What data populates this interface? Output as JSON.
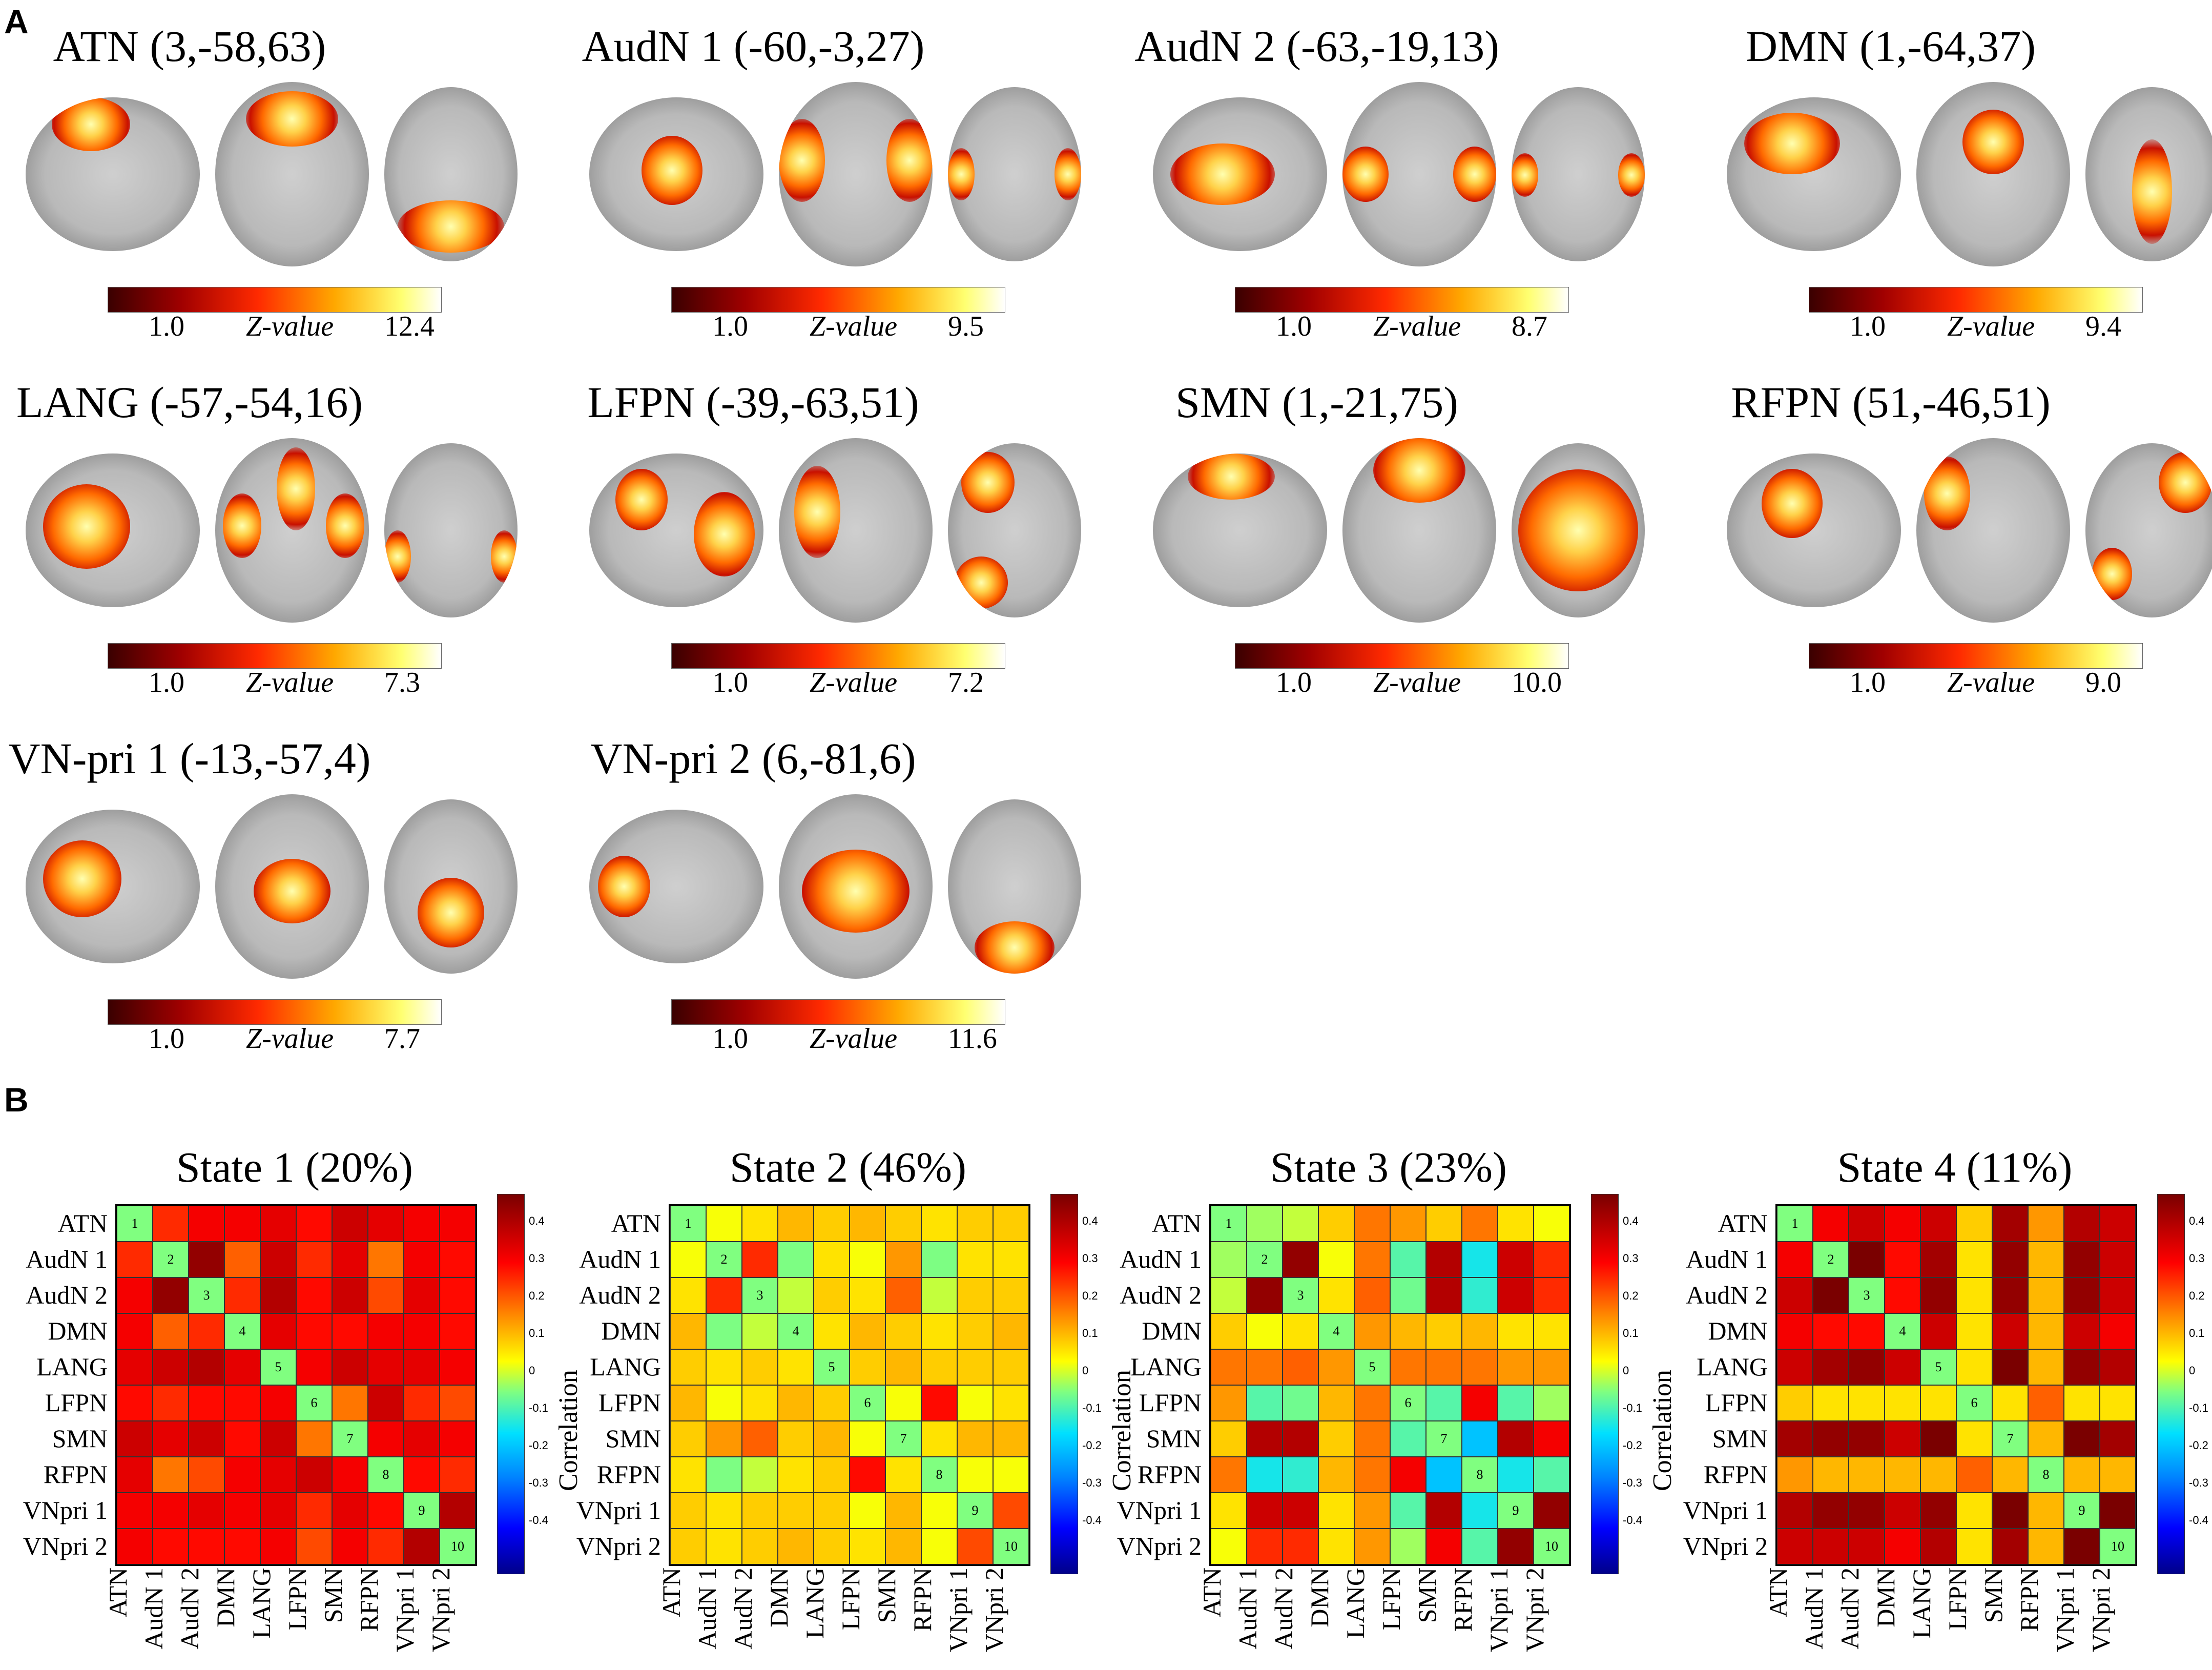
{
  "panelA": {
    "letter": "A"
  },
  "panelB": {
    "letter": "B"
  },
  "networks": [
    {
      "title": "ATN (3,-58,63)",
      "cb_min": "1.0",
      "cb_label": "Z-value",
      "cb_max": "12.4"
    },
    {
      "title": "AudN 1 (-60,-3,27)",
      "cb_min": "1.0",
      "cb_label": "Z-value",
      "cb_max": "9.5"
    },
    {
      "title": "AudN 2 (-63,-19,13)",
      "cb_min": "1.0",
      "cb_label": "Z-value",
      "cb_max": "8.7"
    },
    {
      "title": "DMN (1,-64,37)",
      "cb_min": "1.0",
      "cb_label": "Z-value",
      "cb_max": "9.4"
    },
    {
      "title": "LANG (-57,-54,16)",
      "cb_min": "1.0",
      "cb_label": "Z-value",
      "cb_max": "7.3"
    },
    {
      "title": "LFPN (-39,-63,51)",
      "cb_min": "1.0",
      "cb_label": "Z-value",
      "cb_max": "7.2"
    },
    {
      "title": "SMN (1,-21,75)",
      "cb_min": "1.0",
      "cb_label": "Z-value",
      "cb_max": "10.0"
    },
    {
      "title": "RFPN (51,-46,51)",
      "cb_min": "1.0",
      "cb_label": "Z-value",
      "cb_max": "9.0"
    },
    {
      "title": "VN-pri 1 (-13,-57,4)",
      "cb_min": "1.0",
      "cb_label": "Z-value",
      "cb_max": "7.7"
    },
    {
      "title": "VN-pri 2 (6,-81,6)",
      "cb_min": "1.0",
      "cb_label": "Z-value",
      "cb_max": "11.6"
    }
  ],
  "chart_data": {
    "type": "heatmap",
    "row_labels": [
      "ATN",
      "AudN 1",
      "AudN 2",
      "DMN",
      "LANG",
      "LFPN",
      "SMN",
      "RFPN",
      "VNpri 1",
      "VNpri 2"
    ],
    "col_labels": [
      "ATN",
      "AudN 1",
      "AudN 2",
      "DMN",
      "LANG",
      "LFPN",
      "SMN",
      "RFPN",
      "VNpri 1",
      "VNpri 2"
    ],
    "diag_labels": [
      "1",
      "2",
      "3",
      "4",
      "5",
      "6",
      "7",
      "8",
      "9",
      "10"
    ],
    "colorbar_ticks": [
      "0.4",
      "0.3",
      "0.2",
      "0.1",
      "0",
      "-0.1",
      "-0.2",
      "-0.3",
      "-0.4"
    ],
    "colorbar_label": "Correlation",
    "range": [
      -0.45,
      0.45
    ],
    "states": [
      {
        "title": "State 1 (20%)",
        "matrix": [
          [
            0,
            0.25,
            0.3,
            0.3,
            0.32,
            0.28,
            0.35,
            0.32,
            0.3,
            0.3
          ],
          [
            0.25,
            0,
            0.42,
            0.2,
            0.35,
            0.25,
            0.32,
            0.18,
            0.3,
            0.28
          ],
          [
            0.3,
            0.42,
            0,
            0.25,
            0.38,
            0.28,
            0.35,
            0.22,
            0.32,
            0.28
          ],
          [
            0.3,
            0.2,
            0.25,
            0,
            0.32,
            0.28,
            0.28,
            0.3,
            0.3,
            0.28
          ],
          [
            0.32,
            0.35,
            0.38,
            0.32,
            0,
            0.3,
            0.35,
            0.32,
            0.32,
            0.3
          ],
          [
            0.28,
            0.25,
            0.28,
            0.28,
            0.3,
            0,
            0.18,
            0.35,
            0.25,
            0.22
          ],
          [
            0.35,
            0.32,
            0.35,
            0.28,
            0.35,
            0.18,
            0,
            0.3,
            0.32,
            0.3
          ],
          [
            0.32,
            0.18,
            0.22,
            0.3,
            0.32,
            0.35,
            0.3,
            0,
            0.28,
            0.25
          ],
          [
            0.3,
            0.3,
            0.32,
            0.3,
            0.32,
            0.25,
            0.32,
            0.28,
            0,
            0.38
          ],
          [
            0.3,
            0.28,
            0.28,
            0.28,
            0.3,
            0.22,
            0.3,
            0.25,
            0.38,
            0
          ]
        ]
      },
      {
        "title": "State 2 (46%)",
        "matrix": [
          [
            0,
            0.05,
            0.08,
            0.12,
            0.1,
            0.12,
            0.1,
            0.08,
            0.1,
            0.1
          ],
          [
            0.05,
            0,
            0.25,
            -0.02,
            0.08,
            0.05,
            0.15,
            -0.02,
            0.08,
            0.08
          ],
          [
            0.08,
            0.25,
            0,
            0.02,
            0.1,
            0.08,
            0.2,
            0.02,
            0.1,
            0.1
          ],
          [
            0.12,
            -0.02,
            0.02,
            0,
            0.08,
            0.12,
            0.1,
            0.08,
            0.1,
            0.12
          ],
          [
            0.1,
            0.08,
            0.1,
            0.08,
            0,
            0.1,
            0.12,
            0.1,
            0.1,
            0.1
          ],
          [
            0.12,
            0.05,
            0.08,
            0.12,
            0.1,
            0,
            0.05,
            0.28,
            0.05,
            0.08
          ],
          [
            0.1,
            0.15,
            0.2,
            0.1,
            0.12,
            0.05,
            0,
            0.08,
            0.12,
            0.12
          ],
          [
            0.08,
            -0.02,
            0.02,
            0.08,
            0.1,
            0.28,
            0.08,
            0,
            0.05,
            0.05
          ],
          [
            0.1,
            0.08,
            0.1,
            0.1,
            0.1,
            0.05,
            0.12,
            0.05,
            0,
            0.22
          ],
          [
            0.1,
            0.08,
            0.1,
            0.12,
            0.1,
            0.08,
            0.12,
            0.05,
            0.22,
            0
          ]
        ]
      },
      {
        "title": "State 3 (23%)",
        "matrix": [
          [
            0,
            0.0,
            0.02,
            0.1,
            0.18,
            0.15,
            0.1,
            0.18,
            0.08,
            0.05
          ],
          [
            0.0,
            0,
            0.42,
            0.05,
            0.18,
            -0.05,
            0.38,
            -0.1,
            0.35,
            0.25
          ],
          [
            0.02,
            0.42,
            0,
            0.08,
            0.2,
            -0.03,
            0.38,
            -0.08,
            0.35,
            0.25
          ],
          [
            0.1,
            0.05,
            0.08,
            0,
            0.15,
            0.12,
            0.1,
            0.12,
            0.08,
            0.08
          ],
          [
            0.18,
            0.18,
            0.2,
            0.15,
            0,
            0.18,
            0.18,
            0.18,
            0.15,
            0.15
          ],
          [
            0.15,
            -0.05,
            -0.03,
            0.12,
            0.18,
            0,
            -0.05,
            0.3,
            -0.05,
            0.0
          ],
          [
            0.1,
            0.38,
            0.38,
            0.1,
            0.18,
            -0.05,
            0,
            -0.15,
            0.38,
            0.3
          ],
          [
            0.18,
            -0.1,
            -0.08,
            0.12,
            0.18,
            0.3,
            -0.15,
            0,
            -0.1,
            -0.05
          ],
          [
            0.08,
            0.35,
            0.35,
            0.08,
            0.15,
            -0.05,
            0.38,
            -0.1,
            0,
            0.42
          ],
          [
            0.05,
            0.25,
            0.25,
            0.08,
            0.15,
            0.0,
            0.3,
            -0.05,
            0.42,
            0
          ]
        ]
      },
      {
        "title": "State 4 (11%)",
        "matrix": [
          [
            0,
            0.3,
            0.35,
            0.3,
            0.35,
            0.1,
            0.4,
            0.15,
            0.38,
            0.35
          ],
          [
            0.3,
            0,
            0.5,
            0.28,
            0.4,
            0.08,
            0.42,
            0.12,
            0.42,
            0.35
          ],
          [
            0.35,
            0.5,
            0,
            0.28,
            0.42,
            0.08,
            0.42,
            0.12,
            0.42,
            0.35
          ],
          [
            0.3,
            0.28,
            0.28,
            0,
            0.35,
            0.08,
            0.35,
            0.12,
            0.35,
            0.3
          ],
          [
            0.35,
            0.4,
            0.42,
            0.35,
            0,
            0.08,
            0.45,
            0.12,
            0.42,
            0.38
          ],
          [
            0.1,
            0.08,
            0.08,
            0.08,
            0.08,
            0,
            0.08,
            0.2,
            0.08,
            0.08
          ],
          [
            0.4,
            0.42,
            0.42,
            0.35,
            0.45,
            0.08,
            0,
            0.12,
            0.48,
            0.4
          ],
          [
            0.15,
            0.12,
            0.12,
            0.12,
            0.12,
            0.2,
            0.12,
            0,
            0.12,
            0.12
          ],
          [
            0.38,
            0.42,
            0.42,
            0.35,
            0.42,
            0.08,
            0.48,
            0.12,
            0,
            0.45
          ],
          [
            0.35,
            0.35,
            0.35,
            0.3,
            0.38,
            0.08,
            0.4,
            0.12,
            0.45,
            0
          ]
        ]
      }
    ]
  }
}
